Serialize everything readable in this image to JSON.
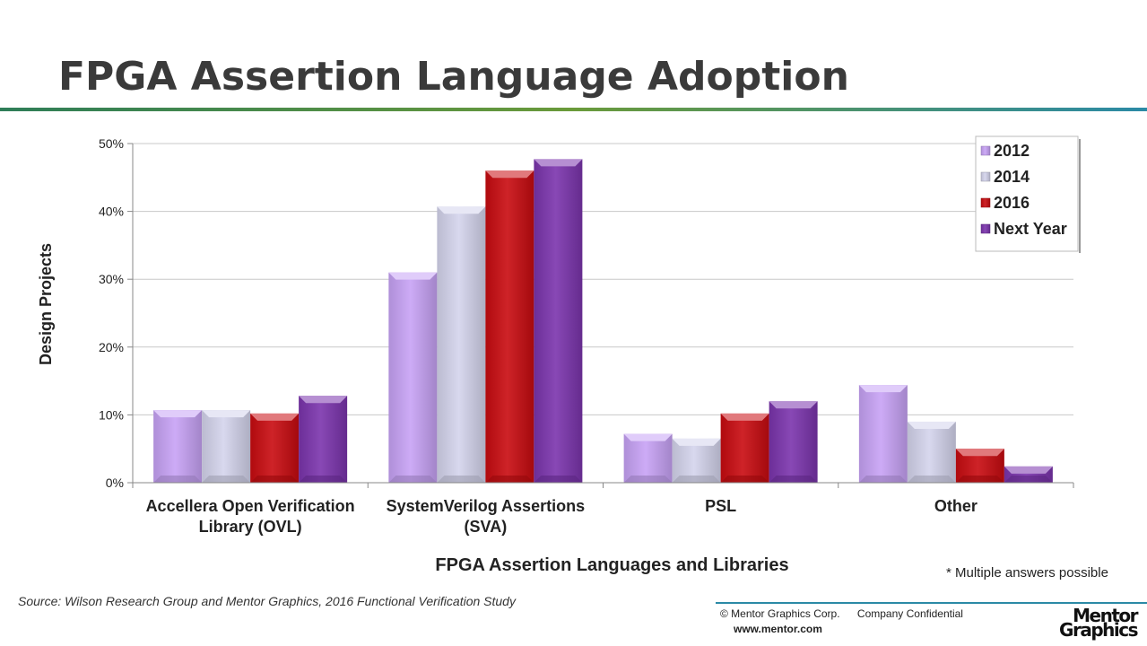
{
  "slide": {
    "title": "FPGA Assertion Language Adoption",
    "note": "* Multiple answers possible",
    "source": "Source:  Wilson Research Group and Mentor Graphics, 2016 Functional Verification Study",
    "copyright": "© Mentor Graphics Corp.",
    "confidential": "Company Confidential",
    "website": "www.mentor.com",
    "logo_line1": "Mentor",
    "logo_line2": "Graphics"
  },
  "chart_data": {
    "type": "bar",
    "xlabel": "FPGA Assertion Languages and Libraries",
    "ylabel": "Design Projects",
    "ylim": [
      0,
      50
    ],
    "yticks": [
      0,
      10,
      20,
      30,
      40,
      50
    ],
    "ytick_labels": [
      "0%",
      "10%",
      "20%",
      "30%",
      "40%",
      "50%"
    ],
    "grid": true,
    "legend_position": "top-right",
    "categories": [
      [
        "Accellera Open Verification",
        "Library (OVL)"
      ],
      [
        "SystemVerilog Assertions",
        "(SVA)"
      ],
      [
        "PSL"
      ],
      [
        "Other"
      ]
    ],
    "series": [
      {
        "name": "2012",
        "color": "#c7a2f5",
        "values": [
          10.7,
          31.0,
          7.2,
          14.4
        ]
      },
      {
        "name": "2014",
        "color": "#d4d4ec",
        "values": [
          10.7,
          40.7,
          6.5,
          9.0
        ]
      },
      {
        "name": "2016",
        "color": "#c80b10",
        "values": [
          10.2,
          46.0,
          10.2,
          5.0
        ]
      },
      {
        "name": "Next Year",
        "color": "#7b34ad",
        "values": [
          12.8,
          47.7,
          12.0,
          2.4
        ]
      }
    ]
  }
}
